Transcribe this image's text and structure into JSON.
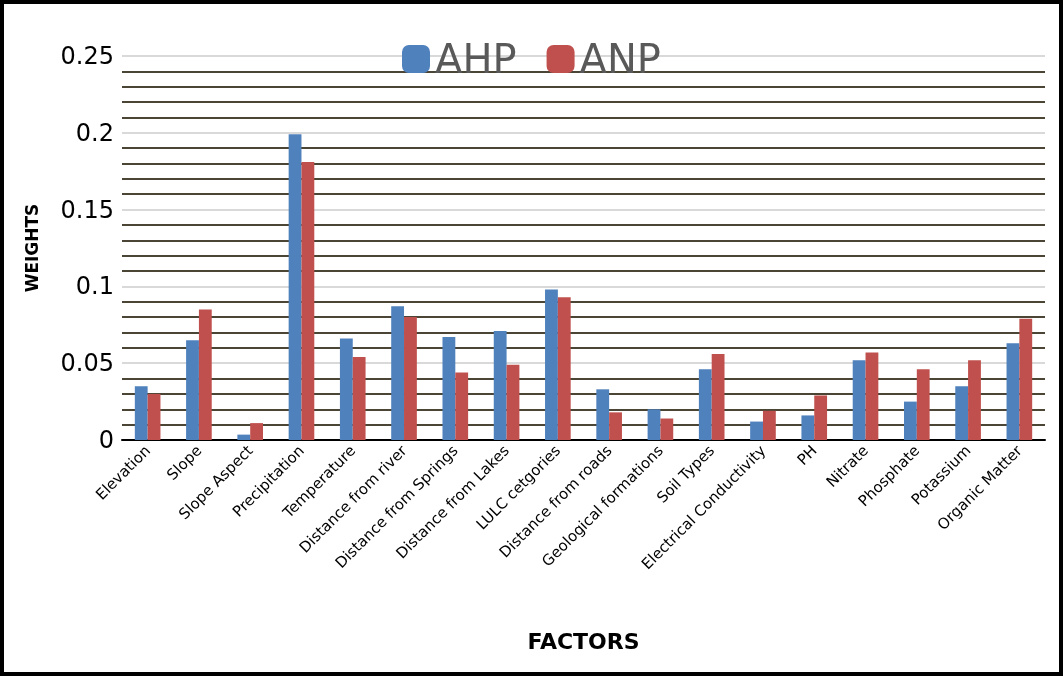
{
  "chart_data": {
    "type": "bar",
    "xlabel": "FACTORS",
    "ylabel": "WEIGHTS",
    "categories": [
      "Elevation",
      "Slope",
      "Slope Aspect",
      "Precipitation",
      "Temperature",
      "Distance from river",
      "Distance from Springs",
      "Distance from Lakes",
      "LULC cetgories",
      "Distance from roads",
      "Geological formations",
      "Soil Types",
      "Electrical Conductivity",
      "PH",
      "Nitrate",
      "Phosphate",
      "Potassium",
      "Organic Matter"
    ],
    "series": [
      {
        "name": "AHP",
        "color": "#4f81bd",
        "values": [
          0.035,
          0.065,
          0.0035,
          0.199,
          0.066,
          0.087,
          0.067,
          0.071,
          0.098,
          0.033,
          0.02,
          0.046,
          0.012,
          0.016,
          0.052,
          0.025,
          0.035,
          0.063
        ]
      },
      {
        "name": "ANP",
        "color": "#c0504d",
        "values": [
          0.03,
          0.085,
          0.011,
          0.181,
          0.054,
          0.08,
          0.044,
          0.049,
          0.093,
          0.018,
          0.014,
          0.056,
          0.019,
          0.029,
          0.057,
          0.046,
          0.052,
          0.079
        ]
      }
    ],
    "ylim": [
      0,
      0.25
    ],
    "yticks": [
      0,
      0.05,
      0.1,
      0.15,
      0.2,
      0.25
    ],
    "grid": true,
    "legend": "top"
  }
}
